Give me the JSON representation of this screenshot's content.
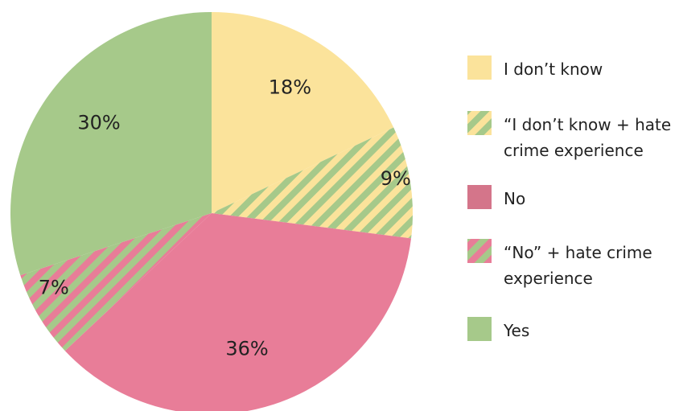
{
  "colors": {
    "yellow": "#fbe39b",
    "pink": "#e87d98",
    "green": "#a6c98a"
  },
  "chart_data": {
    "type": "pie",
    "start_angle_deg": 0,
    "direction": "clockwise",
    "slices": [
      {
        "label": "I don’t know",
        "value": 18,
        "display": "18%",
        "fill": "yellow"
      },
      {
        "label": "“I don’t know + hate crime experience",
        "value": 9,
        "display": "9%",
        "fill": "yellow-green-stripe"
      },
      {
        "label": "No",
        "value": 36,
        "display": "36%",
        "fill": "pink"
      },
      {
        "label": "“No” + hate crime experience",
        "value": 7,
        "display": "7%",
        "fill": "pink-green-stripe"
      },
      {
        "label": "Yes",
        "value": 30,
        "display": "30%",
        "fill": "green"
      }
    ],
    "legend": {
      "position": "right",
      "items": [
        {
          "lines": [
            "I don’t know"
          ],
          "fill": "yellow"
        },
        {
          "lines": [
            "“I don’t know + hate",
            "crime experience"
          ],
          "fill": "yellow-green-stripe"
        },
        {
          "lines": [
            "No"
          ],
          "fill": "pink-solid-legend"
        },
        {
          "lines": [
            "“No” + hate crime",
            "experience"
          ],
          "fill": "pink-green-stripe"
        },
        {
          "lines": [
            "Yes"
          ],
          "fill": "green"
        }
      ]
    }
  }
}
